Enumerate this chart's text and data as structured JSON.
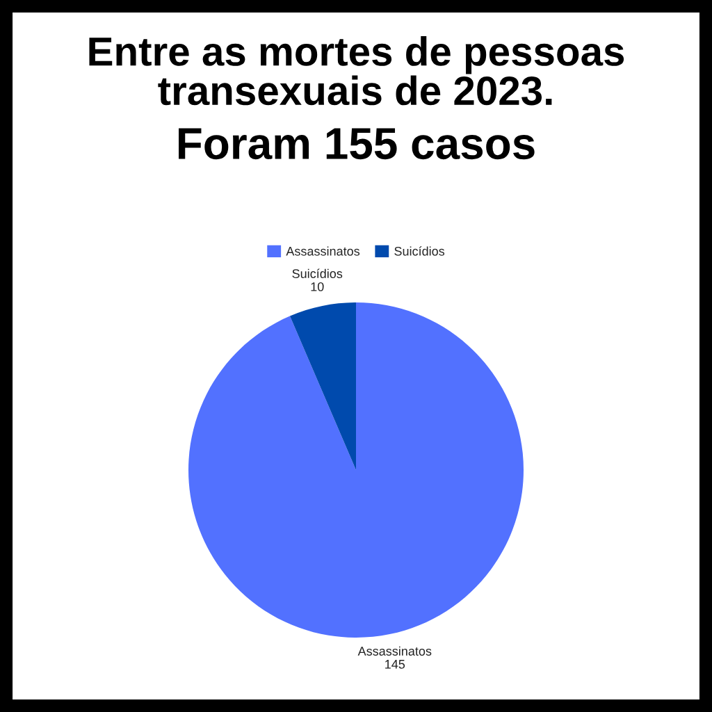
{
  "chart_data": {
    "type": "pie",
    "title": "Entre as mortes de pessoas transexuais de 2023.",
    "subtitle": "Foram 155 casos",
    "categories": [
      "Assassinatos",
      "Suicídios"
    ],
    "values": [
      145,
      10
    ],
    "colors": [
      "#5271ff",
      "#004aad"
    ],
    "legend": "top",
    "data_labels": true
  }
}
